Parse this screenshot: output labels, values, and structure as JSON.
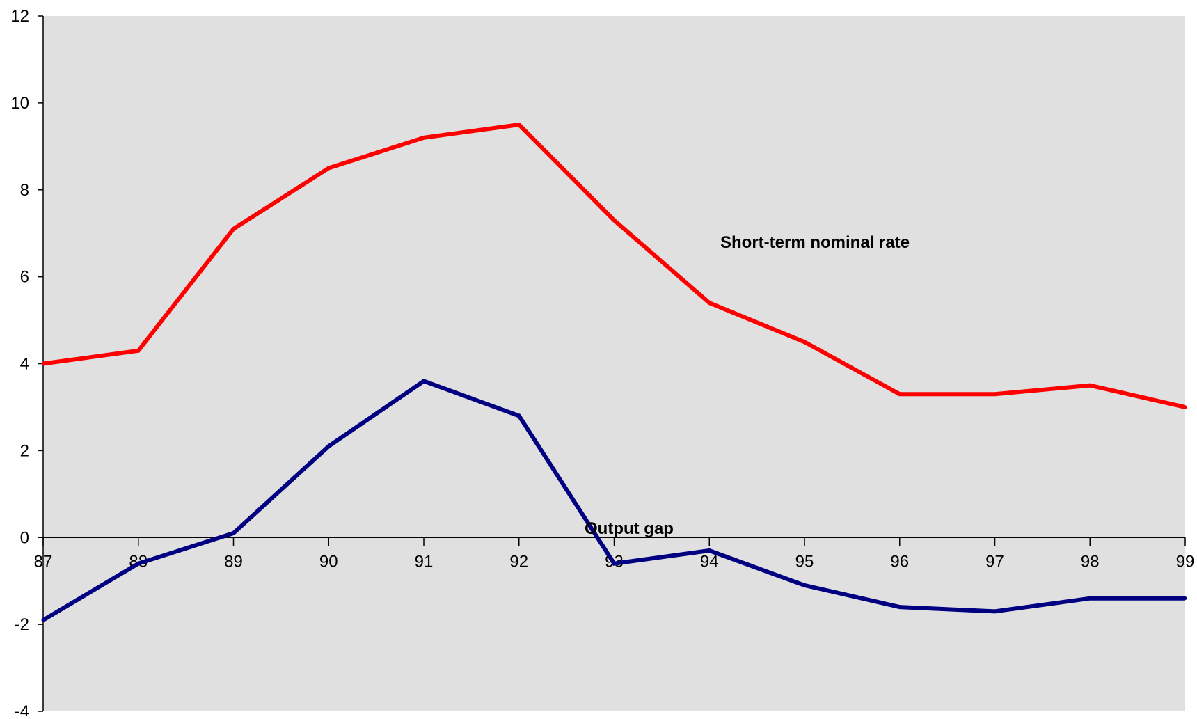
{
  "chart_data": {
    "type": "line",
    "title": "",
    "xlabel": "",
    "ylabel": "",
    "categories": [
      "87",
      "88",
      "89",
      "90",
      "91",
      "92",
      "93",
      "94",
      "95",
      "96",
      "97",
      "98",
      "99"
    ],
    "ylim": [
      -4,
      12
    ],
    "yticks": [
      -4,
      -2,
      0,
      2,
      4,
      6,
      8,
      10,
      12
    ],
    "grid": false,
    "legend": "none",
    "plot_background": "#e0e0e0",
    "series": [
      {
        "name": "Short-term nominal rate",
        "color": "#ff0000",
        "values": [
          4.0,
          4.3,
          7.1,
          8.5,
          9.2,
          9.5,
          7.3,
          5.4,
          4.5,
          3.3,
          3.3,
          3.5,
          3.0
        ]
      },
      {
        "name": "Output gap",
        "color": "#000080",
        "values": [
          -1.9,
          -0.6,
          0.1,
          2.1,
          3.6,
          2.8,
          -0.6,
          -0.3,
          -1.1,
          -1.6,
          -1.7,
          -1.4,
          -1.4
        ]
      }
    ]
  }
}
